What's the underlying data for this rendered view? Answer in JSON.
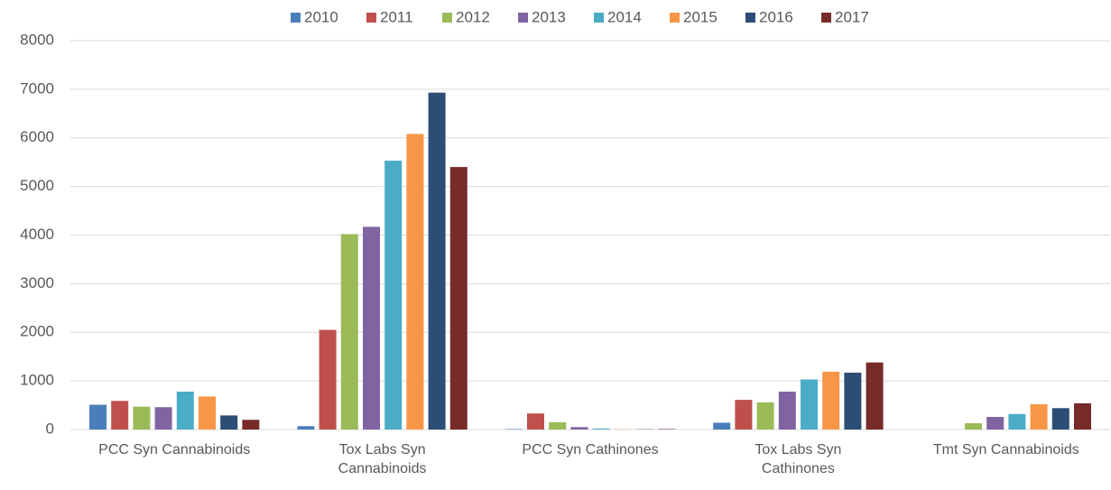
{
  "chart_data": {
    "type": "bar",
    "categories": [
      "PCC Syn Cannabinoids",
      "Tox Labs Syn Cannabinoids",
      "PCC Syn Cathinones",
      "Tox Labs Syn Cathinones",
      "Tmt Syn Cannabinoids"
    ],
    "series": [
      {
        "name": "2010",
        "color": "#4a7ebb",
        "values": [
          510,
          70,
          10,
          140,
          0
        ]
      },
      {
        "name": "2011",
        "color": "#c0504d",
        "values": [
          590,
          2050,
          330,
          610,
          0
        ]
      },
      {
        "name": "2012",
        "color": "#9bbb59",
        "values": [
          470,
          4020,
          150,
          560,
          130
        ]
      },
      {
        "name": "2013",
        "color": "#8064a2",
        "values": [
          460,
          4170,
          50,
          780,
          260
        ]
      },
      {
        "name": "2014",
        "color": "#4bacc6",
        "values": [
          780,
          5530,
          20,
          1030,
          320
        ]
      },
      {
        "name": "2015",
        "color": "#f79646",
        "values": [
          680,
          6080,
          5,
          1190,
          520
        ]
      },
      {
        "name": "2016",
        "color": "#2c4d75",
        "values": [
          290,
          6930,
          5,
          1170,
          440
        ]
      },
      {
        "name": "2017",
        "color": "#772c2a",
        "values": [
          200,
          5400,
          10,
          1380,
          540
        ]
      }
    ],
    "ylim": [
      0,
      8000
    ],
    "yticks": [
      0,
      1000,
      2000,
      3000,
      4000,
      5000,
      6000,
      7000,
      8000
    ],
    "grid": true,
    "legend": "top"
  }
}
